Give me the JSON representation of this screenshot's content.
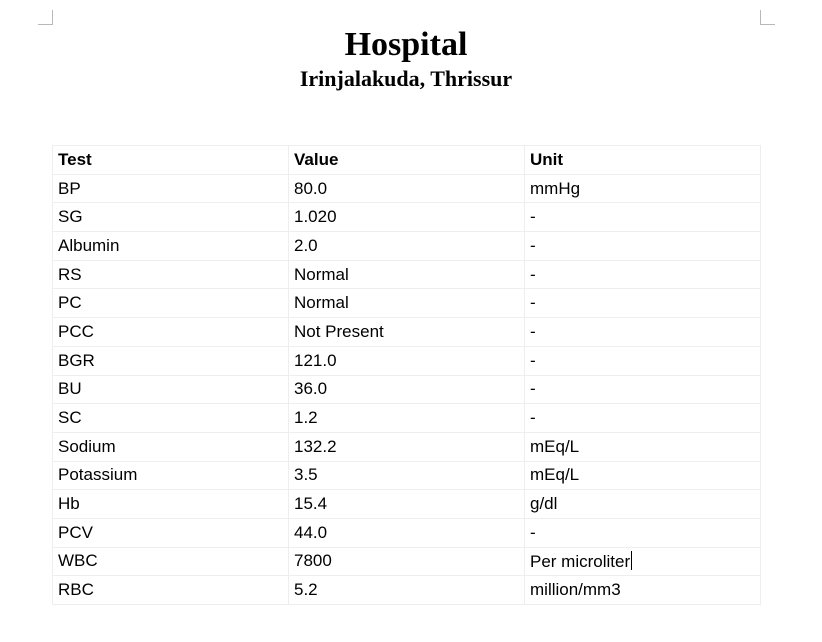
{
  "header": {
    "title": "Hospital",
    "subtitle": "Irinjalakuda, Thrissur"
  },
  "table": {
    "headers": [
      "Test",
      "Value",
      "Unit"
    ],
    "rows": [
      [
        "BP",
        "80.0",
        "mmHg"
      ],
      [
        "SG",
        "1.020",
        "-"
      ],
      [
        "Albumin",
        "2.0",
        "-"
      ],
      [
        "RS",
        "Normal",
        "-"
      ],
      [
        "PC",
        "Normal",
        "-"
      ],
      [
        "PCC",
        "Not Present",
        "-"
      ],
      [
        "BGR",
        "121.0",
        "-"
      ],
      [
        "BU",
        "36.0",
        "-"
      ],
      [
        "SC",
        "1.2",
        "-"
      ],
      [
        "Sodium",
        "132.2",
        "mEq/L"
      ],
      [
        "Potassium",
        "3.5",
        "mEq/L"
      ],
      [
        "Hb",
        "15.4",
        "g/dl"
      ],
      [
        "PCV",
        "44.0",
        "-"
      ],
      [
        "WBC",
        "7800",
        "Per microliter"
      ],
      [
        "RBC",
        "5.2",
        "million/mm3"
      ]
    ]
  }
}
